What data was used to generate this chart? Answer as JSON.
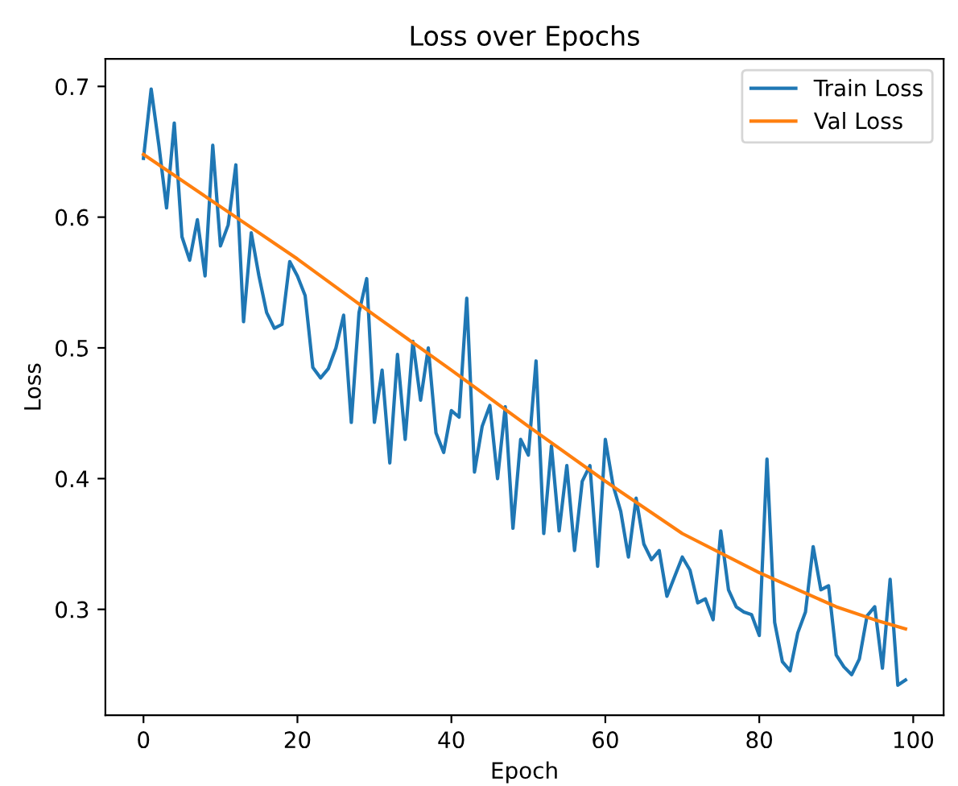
{
  "chart_data": {
    "type": "line",
    "title": "Loss over Epochs",
    "xlabel": "Epoch",
    "ylabel": "Loss",
    "xlim": [
      -4.95,
      103.95
    ],
    "ylim": [
      0.219,
      0.721
    ],
    "xticks": [
      0,
      20,
      40,
      60,
      80,
      100
    ],
    "yticks": [
      0.3,
      0.4,
      0.5,
      0.6,
      0.7
    ],
    "grid": false,
    "legend": "top right",
    "marker": "none",
    "line_style": "solid",
    "series": [
      {
        "name": "Train Loss",
        "color": "#1f77b4",
        "x": [
          0,
          1,
          2,
          3,
          4,
          5,
          6,
          7,
          8,
          9,
          10,
          11,
          12,
          13,
          14,
          15,
          16,
          17,
          18,
          19,
          20,
          21,
          22,
          23,
          24,
          25,
          26,
          27,
          28,
          29,
          30,
          31,
          32,
          33,
          34,
          35,
          36,
          37,
          38,
          39,
          40,
          41,
          42,
          43,
          44,
          45,
          46,
          47,
          48,
          49,
          50,
          51,
          52,
          53,
          54,
          55,
          56,
          57,
          58,
          59,
          60,
          61,
          62,
          63,
          64,
          65,
          66,
          67,
          68,
          69,
          70,
          71,
          72,
          73,
          74,
          75,
          76,
          77,
          78,
          79,
          80,
          81,
          82,
          83,
          84,
          85,
          86,
          87,
          88,
          89,
          90,
          91,
          92,
          93,
          94,
          95,
          96,
          97,
          98,
          99
        ],
        "values": [
          0.645,
          0.698,
          0.655,
          0.607,
          0.672,
          0.585,
          0.567,
          0.598,
          0.555,
          0.655,
          0.578,
          0.594,
          0.64,
          0.52,
          0.588,
          0.555,
          0.527,
          0.515,
          0.518,
          0.566,
          0.555,
          0.54,
          0.485,
          0.477,
          0.484,
          0.5,
          0.525,
          0.443,
          0.527,
          0.553,
          0.443,
          0.483,
          0.412,
          0.495,
          0.43,
          0.505,
          0.46,
          0.5,
          0.435,
          0.42,
          0.452,
          0.447,
          0.538,
          0.405,
          0.44,
          0.456,
          0.4,
          0.455,
          0.362,
          0.43,
          0.418,
          0.49,
          0.358,
          0.425,
          0.36,
          0.41,
          0.345,
          0.398,
          0.41,
          0.333,
          0.43,
          0.395,
          0.375,
          0.34,
          0.385,
          0.35,
          0.338,
          0.345,
          0.31,
          0.325,
          0.34,
          0.33,
          0.305,
          0.308,
          0.292,
          0.36,
          0.315,
          0.302,
          0.298,
          0.296,
          0.28,
          0.415,
          0.29,
          0.26,
          0.253,
          0.282,
          0.298,
          0.348,
          0.315,
          0.318,
          0.265,
          0.256,
          0.25,
          0.262,
          0.295,
          0.302,
          0.255,
          0.323,
          0.242,
          0.246
        ]
      },
      {
        "name": "Val Loss",
        "color": "#ff7f0e",
        "x": [
          0,
          10,
          20,
          30,
          40,
          50,
          60,
          70,
          80,
          90,
          95,
          99
        ],
        "values": [
          0.648,
          0.608,
          0.568,
          0.525,
          0.483,
          0.44,
          0.398,
          0.358,
          0.328,
          0.302,
          0.292,
          0.285
        ]
      }
    ]
  }
}
